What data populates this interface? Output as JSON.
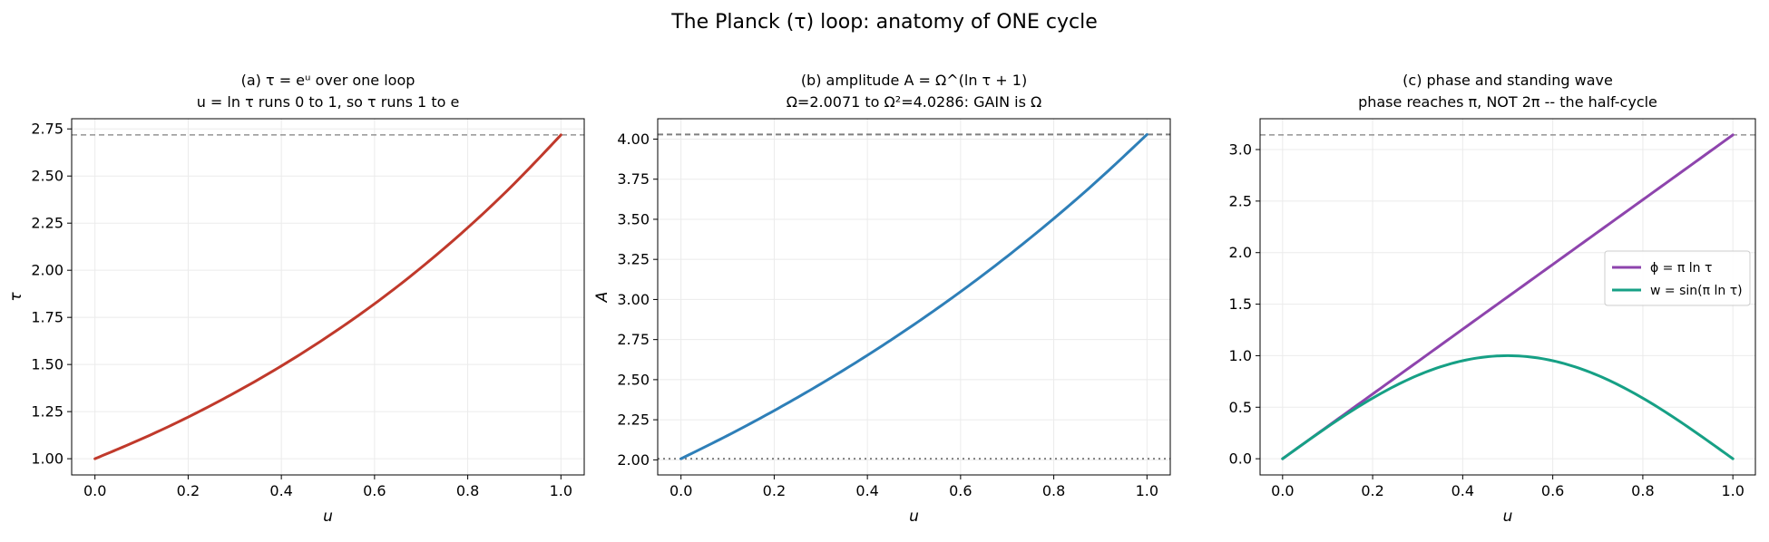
{
  "figure": {
    "suptitle": "The Planck (τ) loop: anatomy of ONE cycle"
  },
  "chart_data": [
    {
      "type": "line",
      "title_line1": "(a) τ = eᵘ over one loop",
      "title_line2": "u = ln τ runs 0 to 1, so τ runs 1 to e",
      "xlabel": "u",
      "ylabel": "τ",
      "xlim": [
        -0.05,
        1.05
      ],
      "ylim": [
        0.914,
        2.804
      ],
      "xticks": [
        0.0,
        0.2,
        0.4,
        0.6,
        0.8,
        1.0
      ],
      "xtick_labels": [
        "0.0",
        "0.2",
        "0.4",
        "0.6",
        "0.8",
        "1.0"
      ],
      "yticks": [
        1.0,
        1.25,
        1.5,
        1.75,
        2.0,
        2.25,
        2.5,
        2.75
      ],
      "ytick_labels": [
        "1.00",
        "1.25",
        "1.50",
        "1.75",
        "2.00",
        "2.25",
        "2.50",
        "2.75"
      ],
      "grid": true,
      "series": [
        {
          "color": "#c0392b",
          "x": [
            0,
            0.1,
            0.2,
            0.3,
            0.4,
            0.5,
            0.6,
            0.7,
            0.8,
            0.9,
            1.0
          ],
          "y": [
            1.0,
            1.105,
            1.221,
            1.35,
            1.492,
            1.649,
            1.822,
            2.014,
            2.226,
            2.46,
            2.718
          ]
        }
      ],
      "hlines": [
        {
          "y": 2.718,
          "style": "dashed",
          "color": "#7f7f7f"
        }
      ]
    },
    {
      "type": "line",
      "title_line1": "(b) amplitude A = Ω^(ln τ + 1)",
      "title_line2": "Ω=2.0071 to Ω²=4.0286: GAIN is Ω",
      "xlabel": "u",
      "ylabel": "A",
      "xlim": [
        -0.05,
        1.05
      ],
      "ylim": [
        1.906,
        4.127
      ],
      "xticks": [
        0.0,
        0.2,
        0.4,
        0.6,
        0.8,
        1.0
      ],
      "xtick_labels": [
        "0.0",
        "0.2",
        "0.4",
        "0.6",
        "0.8",
        "1.0"
      ],
      "yticks": [
        2.0,
        2.25,
        2.5,
        2.75,
        3.0,
        3.25,
        3.5,
        3.75,
        4.0
      ],
      "ytick_labels": [
        "2.00",
        "2.25",
        "2.50",
        "2.75",
        "3.00",
        "3.25",
        "3.50",
        "3.75",
        "4.00"
      ],
      "grid": true,
      "series": [
        {
          "color": "#2e7fb8",
          "x": [
            0,
            0.1,
            0.2,
            0.3,
            0.4,
            0.5,
            0.6,
            0.7,
            0.8,
            0.9,
            1.0
          ],
          "y": [
            2.0071,
            2.1519,
            2.3072,
            2.4736,
            2.6521,
            2.8435,
            3.0486,
            3.2686,
            3.5044,
            3.7573,
            4.0286
          ]
        }
      ],
      "hlines": [
        {
          "y": 4.0286,
          "style": "dashed",
          "color": "#7f7f7f"
        },
        {
          "y": 2.0071,
          "style": "dotted",
          "color": "#7f7f7f"
        }
      ]
    },
    {
      "type": "line",
      "title_line1": "(c) phase and standing wave",
      "title_line2": "phase reaches π, NOT 2π -- the half-cycle",
      "xlabel": "u",
      "ylabel": "",
      "xlim": [
        -0.05,
        1.05
      ],
      "ylim": [
        -0.157,
        3.299
      ],
      "xticks": [
        0.0,
        0.2,
        0.4,
        0.6,
        0.8,
        1.0
      ],
      "xtick_labels": [
        "0.0",
        "0.2",
        "0.4",
        "0.6",
        "0.8",
        "1.0"
      ],
      "yticks": [
        0.0,
        0.5,
        1.0,
        1.5,
        2.0,
        2.5,
        3.0
      ],
      "ytick_labels": [
        "0.0",
        "0.5",
        "1.0",
        "1.5",
        "2.0",
        "2.5",
        "3.0"
      ],
      "grid": true,
      "series": [
        {
          "name": "ϕ = π ln τ",
          "color": "#8e44ad",
          "x": [
            0,
            0.1,
            0.2,
            0.3,
            0.4,
            0.5,
            0.6,
            0.7,
            0.8,
            0.9,
            1.0
          ],
          "y": [
            0,
            0.314,
            0.628,
            0.942,
            1.257,
            1.571,
            1.885,
            2.199,
            2.513,
            2.827,
            3.142
          ]
        },
        {
          "name": "w = sin(π ln τ)",
          "color": "#16a085",
          "x": [
            0,
            0.1,
            0.2,
            0.3,
            0.4,
            0.5,
            0.6,
            0.7,
            0.8,
            0.9,
            1.0
          ],
          "y": [
            0,
            0.309,
            0.588,
            0.809,
            0.951,
            1.0,
            0.951,
            0.809,
            0.588,
            0.309,
            0
          ]
        }
      ],
      "hlines": [
        {
          "y": 3.1416,
          "style": "dashed",
          "color": "#7f7f7f"
        }
      ],
      "legend": "center-right"
    }
  ]
}
